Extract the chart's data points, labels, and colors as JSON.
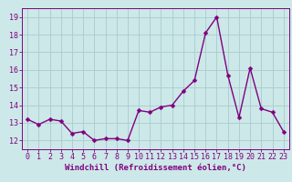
{
  "x": [
    0,
    1,
    2,
    3,
    4,
    5,
    6,
    7,
    8,
    9,
    10,
    11,
    12,
    13,
    14,
    15,
    16,
    17,
    18,
    19,
    20,
    21,
    22,
    23
  ],
  "y": [
    13.2,
    12.9,
    13.2,
    13.1,
    12.4,
    12.5,
    12.0,
    12.1,
    12.1,
    12.0,
    13.7,
    13.6,
    13.9,
    14.0,
    14.8,
    15.4,
    18.1,
    19.0,
    15.7,
    13.3,
    16.1,
    13.8,
    13.6,
    12.5
  ],
  "line_color": "#800080",
  "marker": "D",
  "marker_size": 2.5,
  "line_width": 1.0,
  "bg_color": "#cce8e8",
  "grid_color": "#aacccc",
  "tick_color": "#800080",
  "label_color": "#800080",
  "xlabel": "Windchill (Refroidissement éolien,°C)",
  "xlim": [
    -0.5,
    23.5
  ],
  "ylim": [
    11.5,
    19.5
  ],
  "yticks": [
    12,
    13,
    14,
    15,
    16,
    17,
    18,
    19
  ],
  "xticks": [
    0,
    1,
    2,
    3,
    4,
    5,
    6,
    7,
    8,
    9,
    10,
    11,
    12,
    13,
    14,
    15,
    16,
    17,
    18,
    19,
    20,
    21,
    22,
    23
  ],
  "xlabel_fontsize": 6.5,
  "tick_fontsize": 6.0
}
